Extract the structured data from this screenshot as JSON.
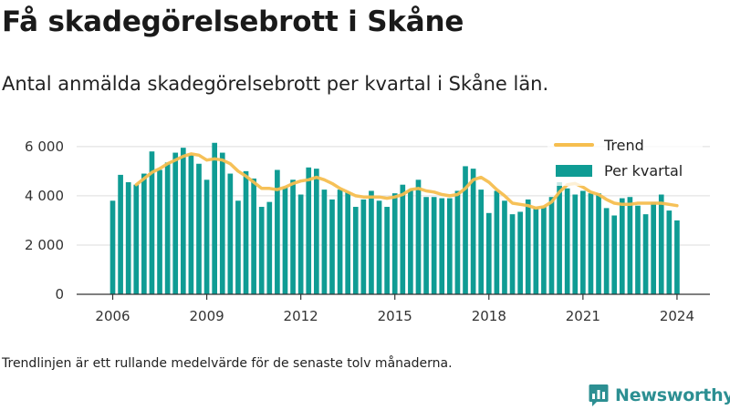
{
  "title": "Få skadegörelsebrott i Skåne",
  "subtitle": "Antal anmälda skadegörelsebrott per kvartal i Skåne län.",
  "footnote": "Trendlinjen är ett rullande medelvärde för de senaste tolv månaderna.",
  "brand": "Newsworthy",
  "colors": {
    "bars": "#0f9c94",
    "trend": "#f6be4f",
    "grid": "#dddddd",
    "axis": "#333333"
  },
  "chart_data": {
    "type": "bar",
    "series": [
      {
        "name": "Per kvartal",
        "style": "bar",
        "x": [
          2006.0,
          2006.25,
          2006.5,
          2006.75,
          2007.0,
          2007.25,
          2007.5,
          2007.75,
          2008.0,
          2008.25,
          2008.5,
          2008.75,
          2009.0,
          2009.25,
          2009.5,
          2009.75,
          2010.0,
          2010.25,
          2010.5,
          2010.75,
          2011.0,
          2011.25,
          2011.5,
          2011.75,
          2012.0,
          2012.25,
          2012.5,
          2012.75,
          2013.0,
          2013.25,
          2013.5,
          2013.75,
          2014.0,
          2014.25,
          2014.5,
          2014.75,
          2015.0,
          2015.25,
          2015.5,
          2015.75,
          2016.0,
          2016.25,
          2016.5,
          2016.75,
          2017.0,
          2017.25,
          2017.5,
          2017.75,
          2018.0,
          2018.25,
          2018.5,
          2018.75,
          2019.0,
          2019.25,
          2019.5,
          2019.75,
          2020.0,
          2020.25,
          2020.5,
          2020.75,
          2021.0,
          2021.25,
          2021.5,
          2021.75,
          2022.0,
          2022.25,
          2022.5,
          2022.75,
          2023.0,
          2023.25,
          2023.5,
          2023.75,
          2024.0
        ],
        "values": [
          3800,
          4850,
          4550,
          4450,
          4900,
          5800,
          5050,
          5350,
          5750,
          5950,
          5650,
          5300,
          4650,
          6150,
          5750,
          4900,
          3800,
          5000,
          4700,
          3550,
          3750,
          5050,
          4350,
          4650,
          4050,
          5150,
          5100,
          4250,
          3850,
          4250,
          4150,
          3550,
          3850,
          4200,
          3800,
          3550,
          4100,
          4450,
          4250,
          4650,
          3950,
          3950,
          3900,
          3900,
          4200,
          5200,
          5100,
          4250,
          3300,
          4200,
          3800,
          3250,
          3350,
          3850,
          3500,
          3550,
          3950,
          4550,
          4300,
          4050,
          4200,
          4100,
          4100,
          3500,
          3200,
          3900,
          3950,
          3600,
          3250,
          3750,
          4050,
          3400,
          3000
        ]
      },
      {
        "name": "Trend",
        "style": "line",
        "x": [
          2006.75,
          2007.0,
          2007.25,
          2007.5,
          2007.75,
          2008.0,
          2008.25,
          2008.5,
          2008.75,
          2009.0,
          2009.25,
          2009.5,
          2009.75,
          2010.0,
          2010.25,
          2010.5,
          2010.75,
          2011.0,
          2011.25,
          2011.5,
          2011.75,
          2012.0,
          2012.25,
          2012.5,
          2012.75,
          2013.0,
          2013.25,
          2013.5,
          2013.75,
          2014.0,
          2014.25,
          2014.5,
          2014.75,
          2015.0,
          2015.25,
          2015.5,
          2015.75,
          2016.0,
          2016.25,
          2016.5,
          2016.75,
          2017.0,
          2017.25,
          2017.5,
          2017.75,
          2018.0,
          2018.25,
          2018.5,
          2018.75,
          2019.0,
          2019.25,
          2019.5,
          2019.75,
          2020.0,
          2020.25,
          2020.5,
          2020.75,
          2021.0,
          2021.25,
          2021.5,
          2021.75,
          2022.0,
          2022.25,
          2022.5,
          2022.75,
          2023.0,
          2023.25,
          2023.5,
          2023.75,
          2024.0
        ],
        "values": [
          4450,
          4700,
          4950,
          5100,
          5300,
          5450,
          5600,
          5700,
          5650,
          5450,
          5500,
          5450,
          5300,
          5000,
          4800,
          4550,
          4300,
          4300,
          4250,
          4350,
          4500,
          4600,
          4650,
          4750,
          4650,
          4500,
          4300,
          4150,
          4000,
          3950,
          3950,
          3950,
          3900,
          3950,
          4050,
          4250,
          4300,
          4200,
          4150,
          4050,
          4000,
          4050,
          4300,
          4650,
          4750,
          4550,
          4250,
          4000,
          3700,
          3650,
          3600,
          3500,
          3550,
          3750,
          4150,
          4450,
          4500,
          4350,
          4150,
          4050,
          3850,
          3700,
          3650,
          3650,
          3700,
          3700,
          3700,
          3700,
          3650,
          3600
        ]
      }
    ],
    "xticks": [
      2006,
      2009,
      2012,
      2015,
      2018,
      2021,
      2024
    ],
    "xtick_labels": [
      "2006",
      "2009",
      "2012",
      "2015",
      "2018",
      "2021",
      "2024"
    ],
    "yticks": [
      0,
      2000,
      4000,
      6000
    ],
    "ytick_labels": [
      "0",
      "2 000",
      "4 000",
      "6 000"
    ],
    "xlim": [
      2004.85,
      2025.05
    ],
    "ylim": [
      0,
      6400
    ],
    "grid": "horizontal",
    "legend_position": "top-right",
    "xlabel": "",
    "ylabel": ""
  }
}
